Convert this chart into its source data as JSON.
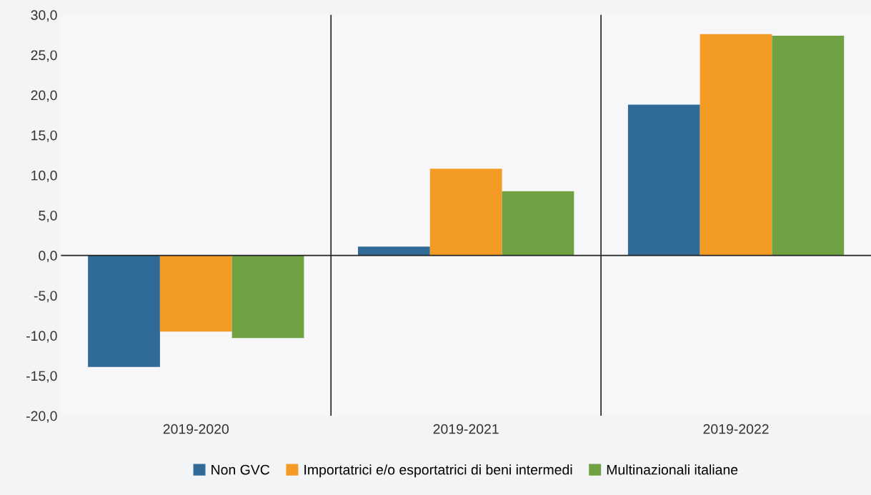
{
  "chart_data": {
    "type": "bar",
    "categories": [
      "2019-2020",
      "2019-2021",
      "2019-2022"
    ],
    "series": [
      {
        "name": "Non GVC",
        "color": "#306b98",
        "values": [
          -13.9,
          1.1,
          18.8
        ]
      },
      {
        "name": "Importatrici e/o esportatrici di beni intermedi",
        "color": "#f49b26",
        "values": [
          -9.5,
          10.8,
          27.6
        ]
      },
      {
        "name": "Multinazionali italiane",
        "color": "#70a142",
        "values": [
          -10.3,
          8.0,
          27.4
        ]
      }
    ],
    "ylim": [
      -20,
      30
    ],
    "yticks": [
      {
        "value": -20,
        "label": "-20,0"
      },
      {
        "value": -15,
        "label": "-15,0"
      },
      {
        "value": -10,
        "label": "-10,0"
      },
      {
        "value": -5,
        "label": "-5,0"
      },
      {
        "value": 0,
        "label": "0,0"
      },
      {
        "value": 5,
        "label": "5,0"
      },
      {
        "value": 10,
        "label": "10,0"
      },
      {
        "value": 15,
        "label": "15,0"
      },
      {
        "value": 20,
        "label": "20,0"
      },
      {
        "value": 25,
        "label": "25,0"
      },
      {
        "value": 30,
        "label": "30,0"
      }
    ],
    "ref_lines": [
      {
        "axis": "y",
        "value": 0,
        "color": "#222222"
      }
    ],
    "legend": "bottom"
  }
}
